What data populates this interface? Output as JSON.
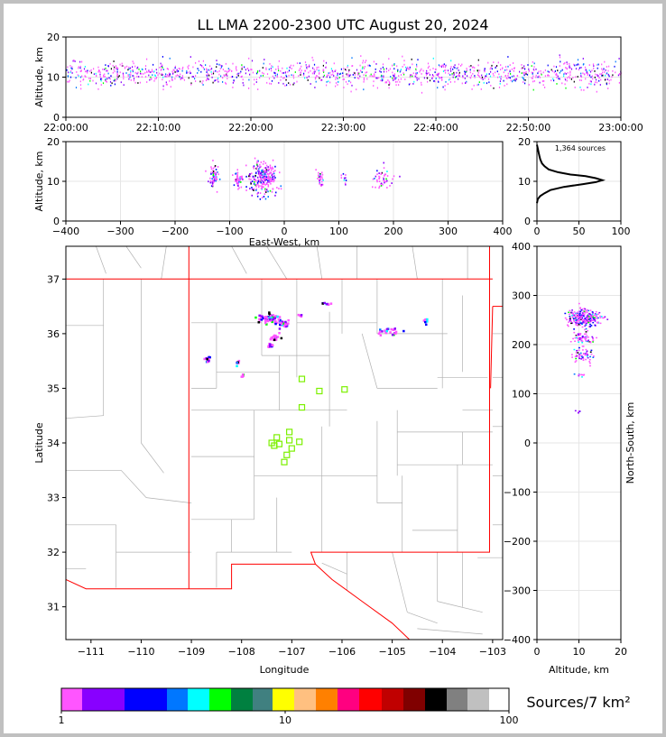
{
  "figure": {
    "title": "LL LMA 2200-2300 UTC August 20, 2024",
    "background": "#c0c0c0"
  },
  "chart_data": [
    {
      "id": "time-height",
      "type": "scatter",
      "xlabel": "",
      "ylabel": "Altitude, km",
      "xticks": [
        "22:00:00",
        "22:10:00",
        "22:20:00",
        "22:30:00",
        "22:40:00",
        "22:50:00",
        "23:00:00"
      ],
      "xlim_minutes": [
        0,
        60
      ],
      "ylim": [
        0,
        20
      ],
      "yticks": [
        0,
        10,
        20
      ],
      "grid": true,
      "description_of_points": "Continuous VHF sources from 22:00 to 23:00, mostly between 7 and 15 km, colored mainly magenta with blue/black core",
      "point_bands": [
        {
          "minute_start": 0,
          "minute_end": 60,
          "alt_min": 6,
          "alt_max": 16,
          "alt_center": 11
        }
      ]
    },
    {
      "id": "ew-height",
      "type": "scatter",
      "xlabel": "East-West, km",
      "ylabel": "Altitude, km",
      "xlim": [
        -400,
        400
      ],
      "xticks": [
        -400,
        -300,
        -200,
        -100,
        0,
        100,
        200,
        300,
        400
      ],
      "ylim": [
        0,
        20
      ],
      "yticks": [
        0,
        10,
        20
      ],
      "grid": true,
      "clusters": [
        {
          "x": -130,
          "spread": 8,
          "alt": 11,
          "alt_spread": 3,
          "n": 60
        },
        {
          "x": -85,
          "spread": 6,
          "alt": 10.5,
          "alt_spread": 2,
          "n": 50
        },
        {
          "x": -40,
          "spread": 20,
          "alt": 11,
          "alt_spread": 4,
          "n": 260
        },
        {
          "x": 65,
          "spread": 4,
          "alt": 11,
          "alt_spread": 2,
          "n": 35
        },
        {
          "x": 110,
          "spread": 6,
          "alt": 11,
          "alt_spread": 2,
          "n": 10
        },
        {
          "x": 180,
          "spread": 20,
          "alt": 11,
          "alt_spread": 3,
          "n": 45
        }
      ]
    },
    {
      "id": "altitude-histogram",
      "type": "line",
      "annotation": "1,364 sources",
      "xlim": [
        0,
        100
      ],
      "xticks": [
        0,
        50,
        100
      ],
      "ylim": [
        0,
        20
      ],
      "yticks": [
        0,
        10,
        20
      ],
      "profile": [
        [
          0,
          4.5
        ],
        [
          1,
          5.5
        ],
        [
          4,
          6.3
        ],
        [
          9,
          7
        ],
        [
          16,
          7.8
        ],
        [
          32,
          8.6
        ],
        [
          55,
          9.3
        ],
        [
          70,
          9.8
        ],
        [
          78,
          10.3
        ],
        [
          70,
          10.8
        ],
        [
          58,
          11.3
        ],
        [
          40,
          11.7
        ],
        [
          25,
          12.3
        ],
        [
          14,
          13
        ],
        [
          9,
          13.8
        ],
        [
          6,
          14.5
        ],
        [
          4,
          15.5
        ],
        [
          3,
          16.3
        ],
        [
          2,
          17.2
        ],
        [
          1,
          18.3
        ],
        [
          0,
          19.2
        ]
      ]
    },
    {
      "id": "plan-view",
      "type": "scatter",
      "xlabel": "Longitude",
      "ylabel": "Latitude",
      "xlim": [
        -111.5,
        -102.8
      ],
      "ylim": [
        30.4,
        37.6
      ],
      "xticks": [
        -111,
        -110,
        -109,
        -108,
        -107,
        -106,
        -105,
        -104,
        -103
      ],
      "yticks": [
        31,
        32,
        33,
        34,
        35,
        36,
        37
      ],
      "source_clusters": [
        {
          "lon": -107.45,
          "lat": 36.3,
          "dlon": 0.25,
          "dlat": 0.08,
          "n": 70
        },
        {
          "lon": -107.2,
          "lat": 36.2,
          "dlon": 0.12,
          "dlat": 0.06,
          "n": 35
        },
        {
          "lon": -107.35,
          "lat": 35.95,
          "dlon": 0.1,
          "dlat": 0.06,
          "n": 20
        },
        {
          "lon": -107.45,
          "lat": 35.8,
          "dlon": 0.05,
          "dlat": 0.05,
          "n": 12
        },
        {
          "lon": -108.7,
          "lat": 35.55,
          "dlon": 0.05,
          "dlat": 0.05,
          "n": 15
        },
        {
          "lon": -108.1,
          "lat": 35.48,
          "dlon": 0.04,
          "dlat": 0.04,
          "n": 10
        },
        {
          "lon": -108.0,
          "lat": 35.25,
          "dlon": 0.03,
          "dlat": 0.03,
          "n": 5
        },
        {
          "lon": -105.15,
          "lat": 36.05,
          "dlon": 0.2,
          "dlat": 0.1,
          "n": 25
        },
        {
          "lon": -104.35,
          "lat": 36.25,
          "dlon": 0.05,
          "dlat": 0.05,
          "n": 8
        },
        {
          "lon": -106.3,
          "lat": 36.57,
          "dlon": 0.1,
          "dlat": 0.02,
          "n": 8
        },
        {
          "lon": -106.85,
          "lat": 36.35,
          "dlon": 0.03,
          "dlat": 0.03,
          "n": 4
        }
      ],
      "stations": [
        [
          -106.8,
          35.17
        ],
        [
          -106.45,
          34.95
        ],
        [
          -105.95,
          34.98
        ],
        [
          -106.8,
          34.65
        ],
        [
          -107.05,
          34.2
        ],
        [
          -107.3,
          34.1
        ],
        [
          -107.05,
          34.05
        ],
        [
          -107.4,
          34.0
        ],
        [
          -107.25,
          33.98
        ],
        [
          -107.0,
          33.9
        ],
        [
          -106.85,
          34.02
        ],
        [
          -107.1,
          33.78
        ],
        [
          -107.15,
          33.65
        ],
        [
          -107.35,
          33.95
        ]
      ],
      "station_color": "#7cf000",
      "state_border_color": "#ff0000",
      "county_border_color": "#b0b0b0"
    },
    {
      "id": "ns-height",
      "type": "scatter",
      "xlabel": "Altitude, km",
      "ylabel": "North-South, km",
      "xlim": [
        0,
        20
      ],
      "xticks": [
        0,
        10,
        20
      ],
      "ylim": [
        -400,
        400
      ],
      "yticks": [
        -400,
        -300,
        -200,
        -100,
        0,
        100,
        200,
        300,
        400
      ],
      "grid": true,
      "clusters": [
        {
          "y": 255,
          "spread": 15,
          "alt": 11,
          "alt_spread": 4,
          "n": 260
        },
        {
          "y": 215,
          "spread": 8,
          "alt": 10.5,
          "alt_spread": 3,
          "n": 60
        },
        {
          "y": 180,
          "spread": 12,
          "alt": 11,
          "alt_spread": 2.5,
          "n": 60
        },
        {
          "y": 140,
          "spread": 3,
          "alt": 10,
          "alt_spread": 2,
          "n": 10
        },
        {
          "y": 65,
          "spread": 3,
          "alt": 10,
          "alt_spread": 1.5,
          "n": 5
        }
      ]
    }
  ],
  "colorbar": {
    "label": "Sources/7 km²",
    "tick_labels": [
      "1",
      "10",
      "100"
    ],
    "colors": [
      "#ff55ff",
      "#8800ff",
      "#0000ff",
      "#0077ff",
      "#00ffff",
      "#00ff00",
      "#008040",
      "#408080",
      "#ffff00",
      "#ffc080",
      "#ff8000",
      "#ff0080",
      "#ff0000",
      "#c00000",
      "#800000",
      "#000000",
      "#808080",
      "#c0c0c0",
      "#ffffff"
    ]
  }
}
